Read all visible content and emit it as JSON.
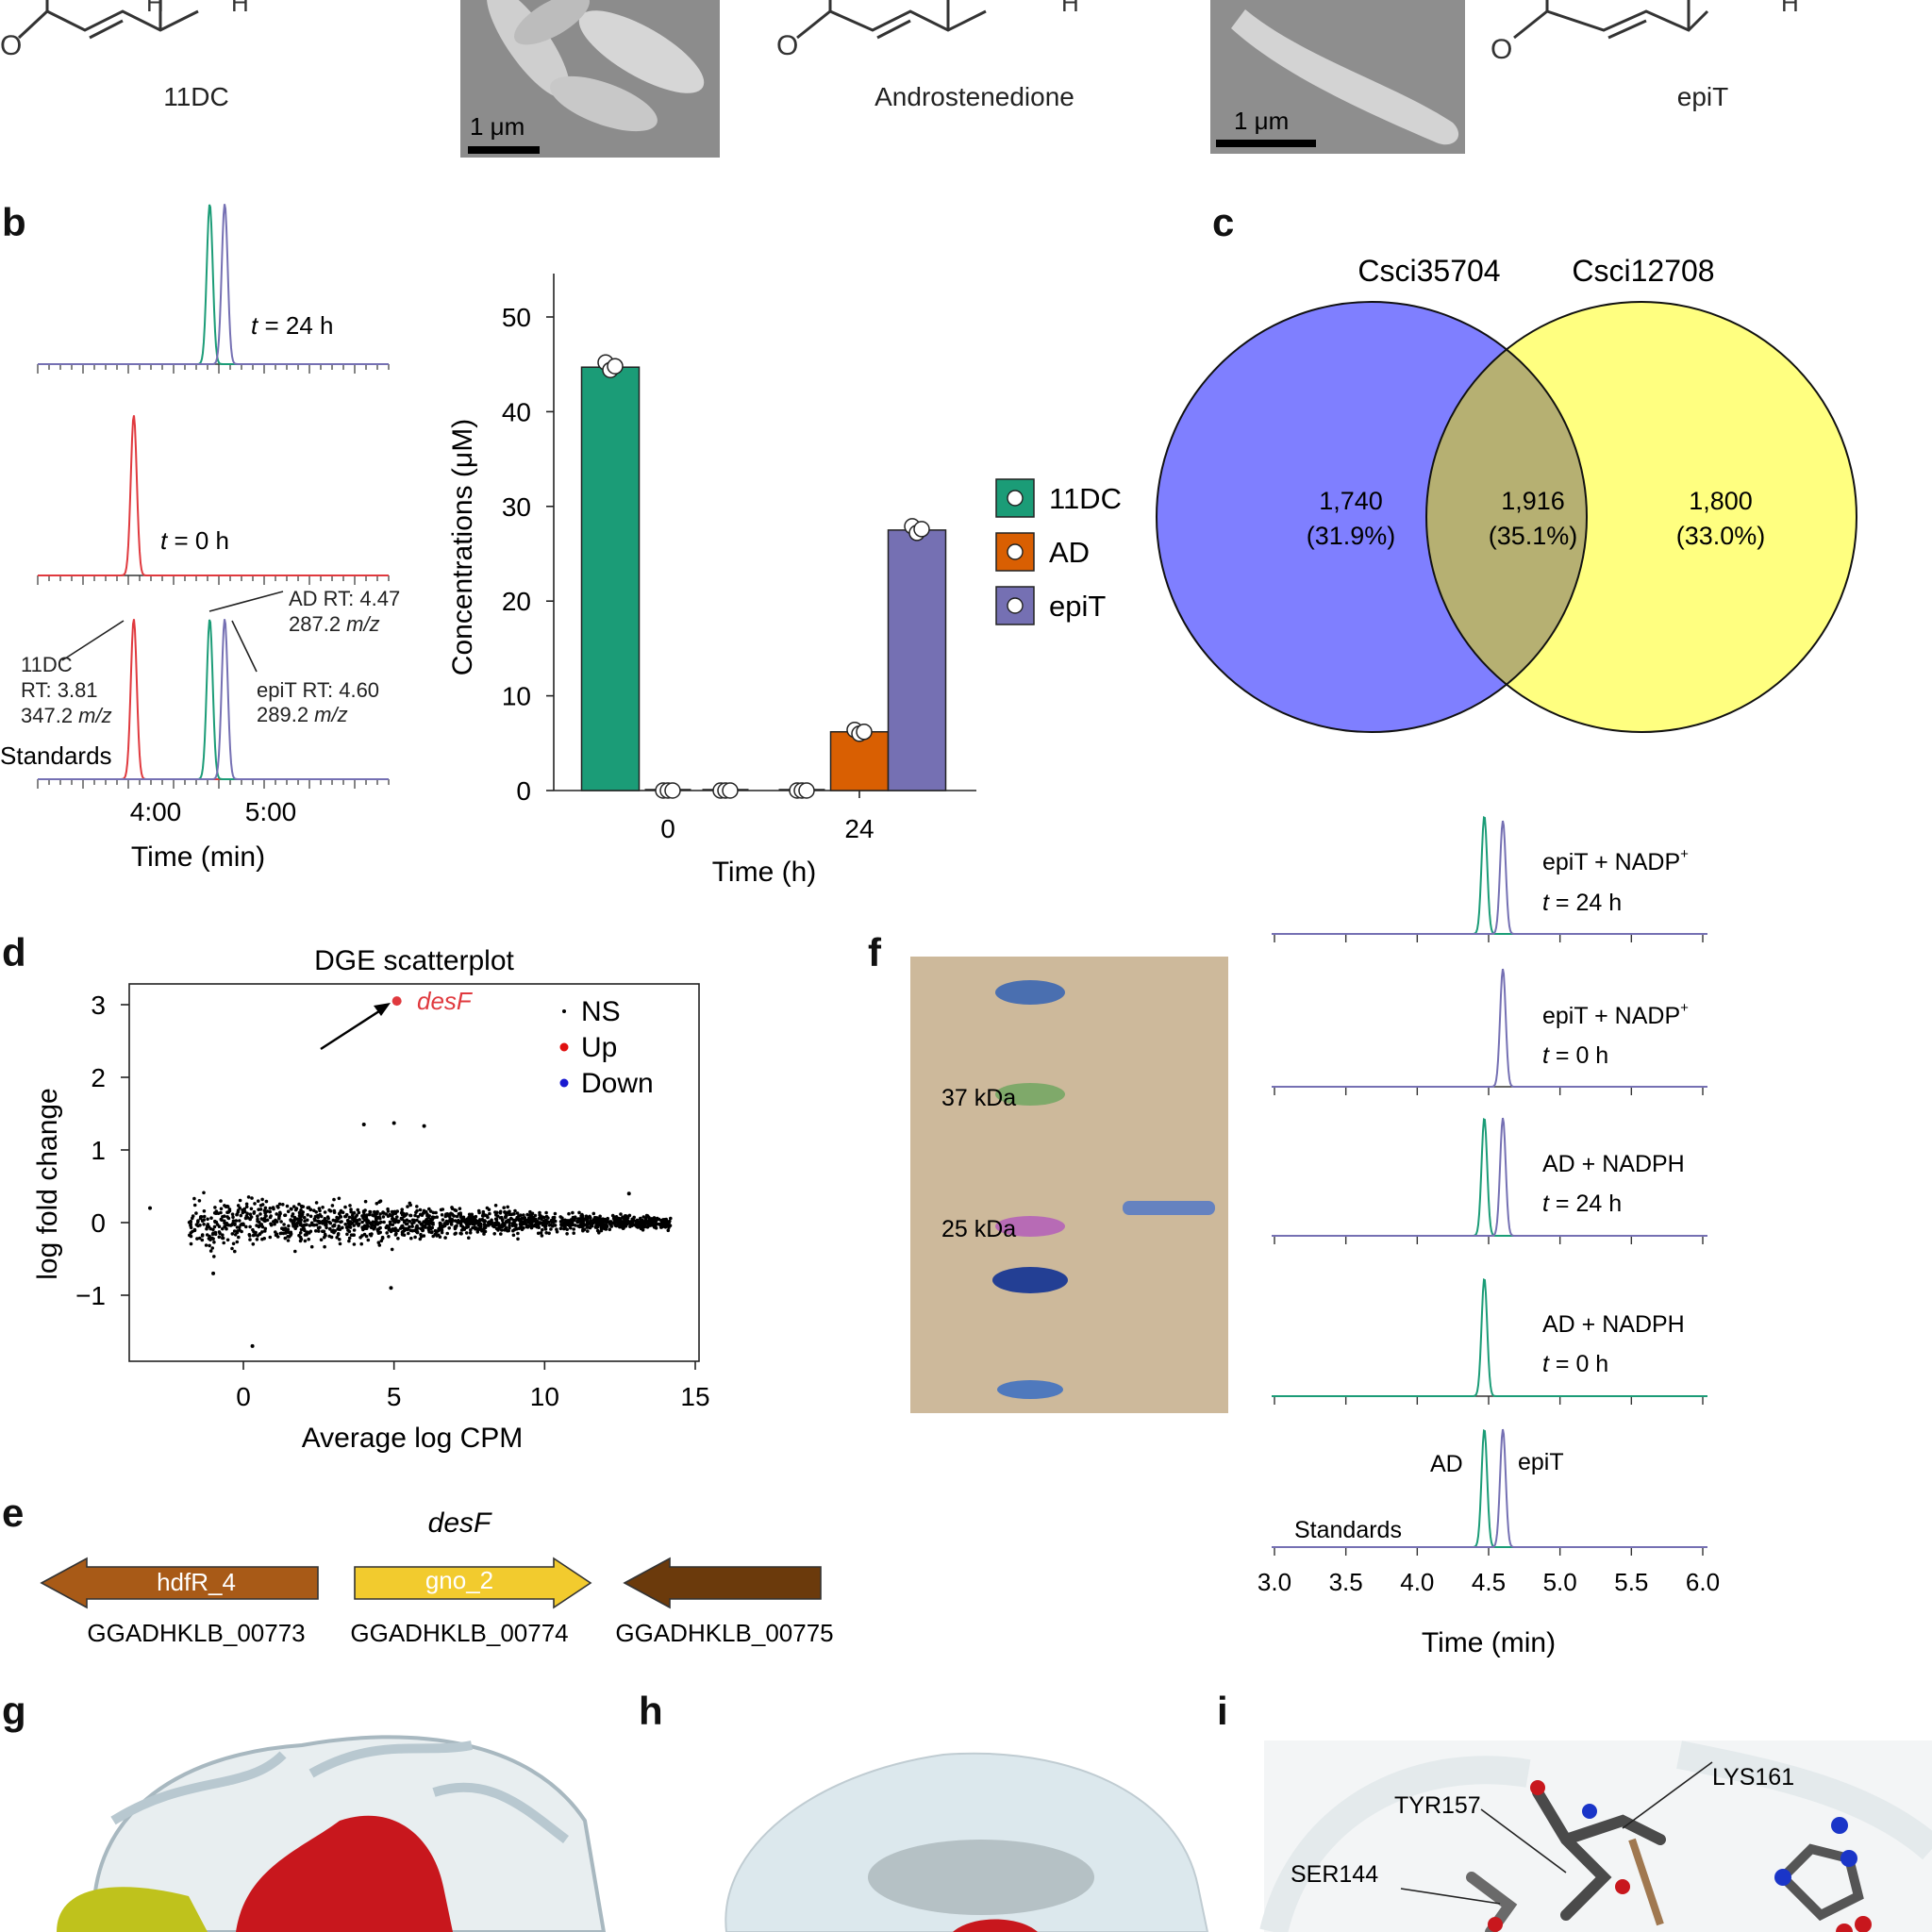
{
  "panels": {
    "a": "",
    "b": "b",
    "c": "c",
    "d": "d",
    "e": "e",
    "f": "f",
    "g": "g",
    "h": "h",
    "i": "i"
  },
  "colors": {
    "green": "#1b9c77",
    "orange": "#d95f02",
    "purple": "#7570b3",
    "red": "#e0393e",
    "venn_left": "#7f7fff",
    "venn_right": "#ffff80",
    "venn_overlap": "#b6b072"
  },
  "top_row": {
    "compounds": [
      "11DC",
      "Androstenedione",
      "epiT"
    ],
    "scalebars": [
      "1 μm",
      "1 μm"
    ]
  },
  "chromatograms_b": {
    "traces": [
      {
        "label_t": "t",
        "label_rest": " = 24 h"
      },
      {
        "label_t": "t",
        "label_rest": " = 0 h"
      },
      {
        "label": "Standards"
      }
    ],
    "annotations": {
      "dc_name": "11DC",
      "dc_rt": "RT: 3.81",
      "dc_mz": "347.2 ",
      "ad_rt": "AD RT: 4.47",
      "ad_mz": "287.2 ",
      "epit_rt": "epiT RT: 4.60",
      "epit_mz": "289.2 ",
      "mz_unit": "m/z"
    },
    "x_ticks": [
      "4:00",
      "5:00"
    ],
    "xlabel": "Time (min)"
  },
  "chart_data": [
    {
      "type": "bar",
      "panel": "b",
      "categories": [
        "0",
        "24"
      ],
      "series": [
        {
          "name": "11DC",
          "values": [
            44.7,
            0.0
          ]
        },
        {
          "name": "AD",
          "values": [
            0.0,
            6.2
          ]
        },
        {
          "name": "epiT",
          "values": [
            0.0,
            27.5
          ]
        }
      ],
      "points": {
        "11DC": [
          [
            45.2,
            44.4,
            44.8
          ],
          [
            0,
            0,
            0
          ]
        ],
        "AD": [
          [
            0,
            0,
            0
          ],
          [
            6.4,
            6.0,
            6.2
          ]
        ],
        "epiT": [
          [
            0,
            0,
            0
          ],
          [
            27.9,
            27.2,
            27.6
          ]
        ]
      },
      "xlabel": "Time (h)",
      "ylabel": "Concentrations (μM)",
      "ylim": [
        0,
        50
      ],
      "yticks": [
        "0",
        "10",
        "20",
        "30",
        "40",
        "50"
      ]
    },
    {
      "type": "scatter",
      "panel": "d",
      "title": "DGE scatterplot",
      "xlabel": "Average log CPM",
      "ylabel": "log fold change",
      "xlim": [
        -3.5,
        15
      ],
      "ylim": [
        -1.8,
        3.3
      ],
      "xticks": [
        "0",
        "5",
        "10",
        "15"
      ],
      "yticks": [
        "−1",
        "0",
        "1",
        "2",
        "3"
      ],
      "legend": [
        "NS",
        "Up",
        "Down"
      ],
      "highlight": {
        "label": "desF",
        "x": 5.0,
        "y": 3.05
      },
      "outliers": [
        [
          -3.1,
          0.2
        ],
        [
          4.0,
          1.35
        ],
        [
          5.0,
          1.37
        ],
        [
          6.0,
          1.33
        ],
        [
          0.3,
          -1.7
        ],
        [
          4.9,
          -0.9
        ],
        [
          12.8,
          0.4
        ],
        [
          -1.0,
          -0.7
        ]
      ]
    },
    {
      "type": "line",
      "panel": "f",
      "xlabel": "Time (min)",
      "xticks": [
        "3.0",
        "3.5",
        "4.0",
        "4.5",
        "5.0",
        "5.5",
        "6.0"
      ],
      "xlim": [
        3.0,
        6.0
      ],
      "traces": [
        {
          "line1": "epiT + NADP",
          "sup": "+",
          "t": "t",
          "rest": " = 24 h"
        },
        {
          "line1": "epiT + NADP",
          "sup": "+",
          "t": "t",
          "rest": " = 0 h"
        },
        {
          "line1": "AD + NADPH",
          "sup": "",
          "t": "t",
          "rest": " = 24 h"
        },
        {
          "line1": "AD + NADPH",
          "sup": "",
          "t": "t",
          "rest": " = 0 h"
        },
        {
          "line1": "Standards",
          "sup": "",
          "t": "",
          "rest": ""
        }
      ],
      "peak_labels": {
        "ad": "AD",
        "epit": "epiT"
      }
    }
  ],
  "venn": {
    "left_name": "Csci35704",
    "right_name": "Csci12708",
    "left": "1,740",
    "left_pct": "(31.9%)",
    "overlap": "1,916",
    "overlap_pct": "(35.1%)",
    "right": "1,800",
    "right_pct": "(33.0%)"
  },
  "gel": {
    "markers": [
      "37 kDa",
      "25 kDa"
    ]
  },
  "genes": {
    "title": "desF",
    "items": [
      {
        "name": "hdfR_4",
        "id": "GGADHKLB_00773",
        "color": "#a85a17"
      },
      {
        "name": "gno_2",
        "id": "GGADHKLB_00774",
        "color": "#f2cb2e"
      },
      {
        "name": "",
        "id": "GGADHKLB_00775",
        "color": "#6b3a0c"
      }
    ]
  },
  "residues": [
    "TYR157",
    "LYS161",
    "SER144"
  ]
}
